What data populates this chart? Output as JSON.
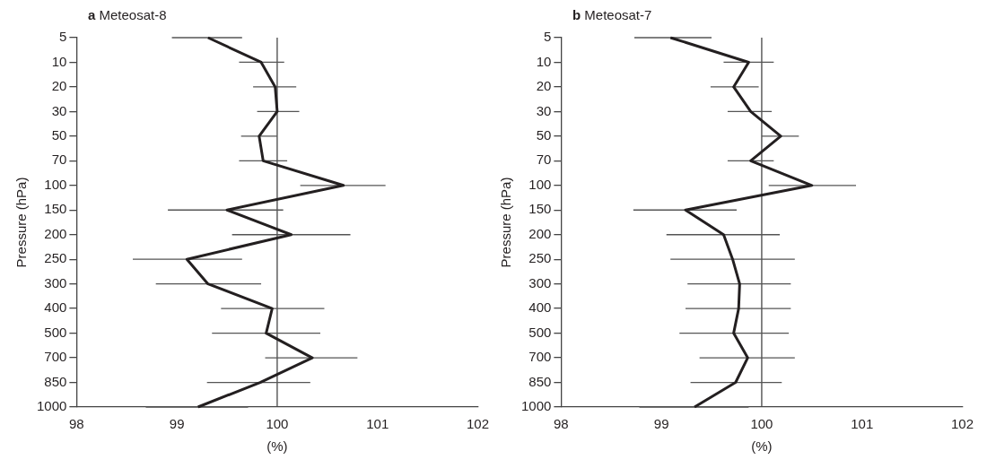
{
  "chart_data": [
    {
      "type": "line",
      "title": "a Meteosat-8",
      "orientation": "horizontal",
      "xlabel": "(%)",
      "ylabel": "Pressure (hPa)",
      "marker": "none",
      "categories": [
        "5",
        "10",
        "20",
        "30",
        "50",
        "70",
        "100",
        "150",
        "200",
        "250",
        "300",
        "400",
        "500",
        "700",
        "850",
        "1000"
      ],
      "series": [
        {
          "color": "#231f20",
          "values": [
            99.31,
            99.84,
            99.98,
            100.0,
            99.82,
            99.86,
            100.66,
            99.5,
            100.14,
            99.1,
            99.31,
            99.95,
            99.89,
            100.35,
            99.83,
            99.21
          ],
          "errors": [
            [
              98.95,
              99.65
            ],
            [
              99.62,
              100.07
            ],
            [
              99.76,
              100.19
            ],
            [
              99.8,
              100.22
            ],
            [
              99.64,
              100.0
            ],
            [
              99.62,
              100.1
            ],
            [
              100.23,
              101.08
            ],
            [
              98.91,
              100.06
            ],
            [
              99.55,
              100.73
            ],
            [
              98.56,
              99.65
            ],
            [
              98.79,
              99.84
            ],
            [
              99.44,
              100.47
            ],
            [
              99.35,
              100.43
            ],
            [
              99.88,
              100.8
            ],
            [
              99.3,
              100.33
            ],
            [
              98.69,
              99.71
            ]
          ]
        }
      ],
      "xlim": [
        98,
        102
      ],
      "xticks": [
        98,
        99,
        100,
        101,
        102
      ],
      "ref_lines": [
        {
          "axis": "x",
          "value": 100
        }
      ]
    },
    {
      "type": "line",
      "title": "b Meteosat-7",
      "orientation": "horizontal",
      "xlabel": "(%)",
      "ylabel": "Pressure (hPa)",
      "marker": "none",
      "categories": [
        "5",
        "10",
        "20",
        "30",
        "50",
        "70",
        "100",
        "150",
        "200",
        "250",
        "300",
        "400",
        "500",
        "700",
        "850",
        "1000"
      ],
      "series": [
        {
          "color": "#231f20",
          "values": [
            99.09,
            99.87,
            99.72,
            99.89,
            100.19,
            99.89,
            100.5,
            99.24,
            99.62,
            99.71,
            99.78,
            99.77,
            99.72,
            99.86,
            99.74,
            99.33
          ],
          "errors": [
            [
              98.73,
              99.5
            ],
            [
              99.62,
              100.12
            ],
            [
              99.49,
              99.97
            ],
            [
              99.66,
              100.1
            ],
            [
              100.0,
              100.37
            ],
            [
              99.66,
              100.12
            ],
            [
              100.07,
              100.94
            ],
            [
              98.72,
              99.75
            ],
            [
              99.05,
              100.18
            ],
            [
              99.09,
              100.33
            ],
            [
              99.26,
              100.29
            ],
            [
              99.24,
              100.29
            ],
            [
              99.18,
              100.27
            ],
            [
              99.38,
              100.33
            ],
            [
              99.29,
              100.2
            ],
            [
              98.78,
              99.87
            ]
          ]
        }
      ],
      "xlim": [
        98,
        102
      ],
      "xticks": [
        98,
        99,
        100,
        101,
        102
      ],
      "ref_lines": [
        {
          "axis": "x",
          "value": 100
        }
      ]
    }
  ]
}
